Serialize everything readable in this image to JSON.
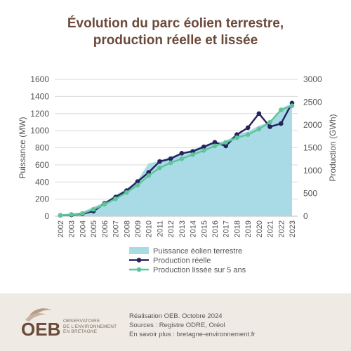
{
  "title_line1": "Évolution du parc éolien terrestre,",
  "title_line2": "production réelle et lissée",
  "footer": {
    "line1": "Réalisation OEB. Octobre 2024",
    "line2": "Sources : Registre ODRE, Oréol",
    "line3": "En savoir plus : bretagne-environnement.fr",
    "logo_acronym": "OEB",
    "logo_line1": "OBSERVATOIRE",
    "logo_line2": "DE L'ENVIRONNEMENT",
    "logo_line3": "EN BRETAGNE"
  },
  "colors": {
    "area": "#a9dbe6",
    "production": "#27235e",
    "smoothed": "#5ec59a",
    "title": "#6b4a3a",
    "axis_text": "#555555",
    "grid": "#d9d9d9"
  },
  "chart_data": {
    "type": "line",
    "title": "Évolution du parc éolien terrestre, production réelle et lissée",
    "x": [
      "2002",
      "2003",
      "2004",
      "2005",
      "2006",
      "2007",
      "2008",
      "2009",
      "2010",
      "2011",
      "2012",
      "2013",
      "2014",
      "2015",
      "2016",
      "2017",
      "2018",
      "2019",
      "2020",
      "2021",
      "2022",
      "2023"
    ],
    "ylabel_left": "Puissance (MW)",
    "ylabel_right": "Production (GWh)",
    "ylim_left": [
      0,
      1600
    ],
    "ylim_right": [
      0,
      3000
    ],
    "yticks_left": [
      "0",
      "200",
      "400",
      "600",
      "800",
      "1000",
      "1200",
      "1400",
      "1600"
    ],
    "yticks_right": [
      "0",
      "500",
      "1000",
      "1500",
      "2000",
      "2500",
      "3000"
    ],
    "series": [
      {
        "name": "Puissance éolien terrestre",
        "kind": "area",
        "axis": "left",
        "values": [
          15,
          20,
          50,
          110,
          160,
          250,
          320,
          420,
          620,
          640,
          700,
          740,
          780,
          830,
          860,
          880,
          960,
          990,
          1060,
          1100,
          1260,
          1320
        ]
      },
      {
        "name": "Production réelle",
        "kind": "line",
        "axis": "right",
        "values": [
          20,
          30,
          50,
          110,
          280,
          420,
          560,
          760,
          960,
          1200,
          1260,
          1380,
          1420,
          1520,
          1620,
          1540,
          1790,
          1940,
          2250,
          1960,
          2030,
          2480
        ]
      },
      {
        "name": "Production lissée sur 5 ans",
        "kind": "line",
        "axis": "right",
        "values": [
          20,
          40,
          60,
          150,
          260,
          380,
          520,
          680,
          890,
          1060,
          1170,
          1260,
          1350,
          1440,
          1540,
          1620,
          1720,
          1790,
          1910,
          2060,
          2330,
          2420
        ]
      }
    ],
    "legend_position": "bottom",
    "grid": true
  }
}
